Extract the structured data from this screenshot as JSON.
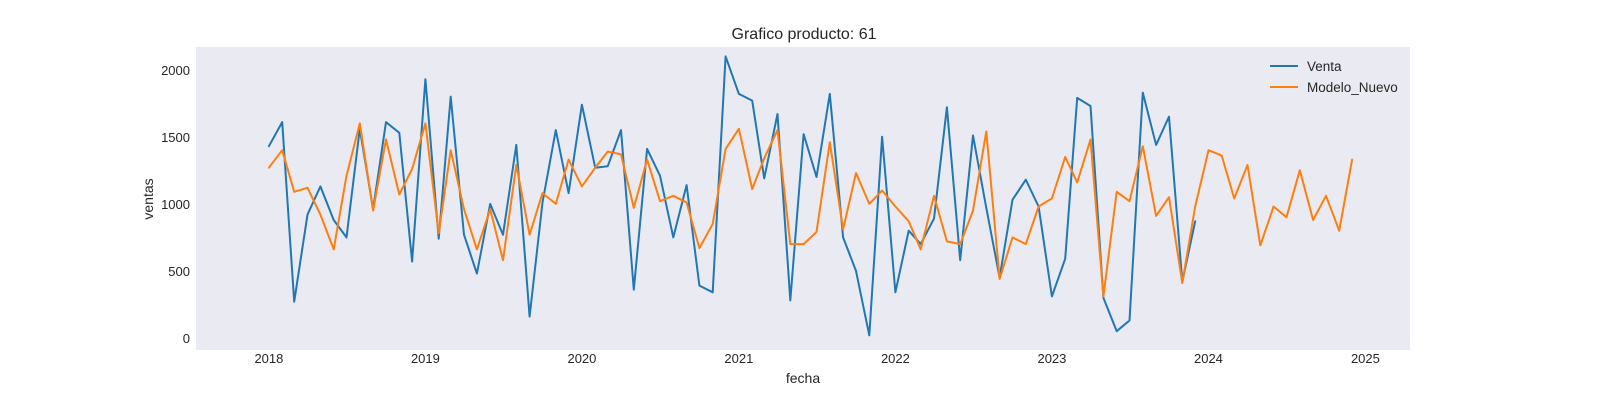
{
  "chart_data": {
    "type": "line",
    "title": "Grafico producto: 61",
    "xlabel": "fecha",
    "ylabel": "ventas",
    "x_range": [
      "2017-07-15",
      "2025-04-15"
    ],
    "ylim": [
      -90,
      2170
    ],
    "xticks": [
      "2018",
      "2019",
      "2020",
      "2021",
      "2022",
      "2023",
      "2024",
      "2025"
    ],
    "yticks": [
      0,
      500,
      1000,
      1500,
      2000
    ],
    "grid": false,
    "legend_position": "top-right",
    "background": "#eaeaf2",
    "series": [
      {
        "name": "Venta",
        "color": "#1f77b4",
        "start": "2018-01",
        "values": [
          1430,
          1610,
          270,
          920,
          1130,
          880,
          750,
          1560,
          960,
          1610,
          1530,
          570,
          1930,
          740,
          1800,
          770,
          480,
          1000,
          770,
          1440,
          160,
          1010,
          1550,
          1080,
          1740,
          1270,
          1280,
          1550,
          360,
          1410,
          1210,
          750,
          1140,
          390,
          340,
          2100,
          1820,
          1770,
          1190,
          1670,
          280,
          1520,
          1200,
          1820,
          750,
          500,
          20,
          1500,
          340,
          800,
          700,
          890,
          1720,
          580,
          1510,
          970,
          450,
          1030,
          1180,
          980,
          310,
          590,
          1790,
          1730,
          300,
          50,
          130,
          1830,
          1440,
          1650,
          420,
          870
        ]
      },
      {
        "name": "Modelo_Nuevo",
        "color": "#ff7f0e",
        "start": "2018-01",
        "values": [
          1270,
          1400,
          1090,
          1120,
          920,
          660,
          1210,
          1600,
          950,
          1480,
          1070,
          1260,
          1600,
          780,
          1400,
          960,
          660,
          960,
          580,
          1290,
          770,
          1080,
          1000,
          1330,
          1130,
          1270,
          1390,
          1370,
          970,
          1330,
          1020,
          1060,
          1010,
          670,
          850,
          1410,
          1560,
          1110,
          1340,
          1550,
          700,
          700,
          790,
          1460,
          810,
          1230,
          1000,
          1100,
          980,
          870,
          660,
          1060,
          720,
          700,
          950,
          1540,
          440,
          750,
          700,
          980,
          1040,
          1350,
          1160,
          1480,
          310,
          1090,
          1020,
          1430,
          910,
          1050,
          410,
          980,
          1400,
          1360,
          1040,
          1290,
          690,
          980,
          900,
          1250,
          880,
          1060,
          800,
          1330
        ]
      }
    ]
  }
}
